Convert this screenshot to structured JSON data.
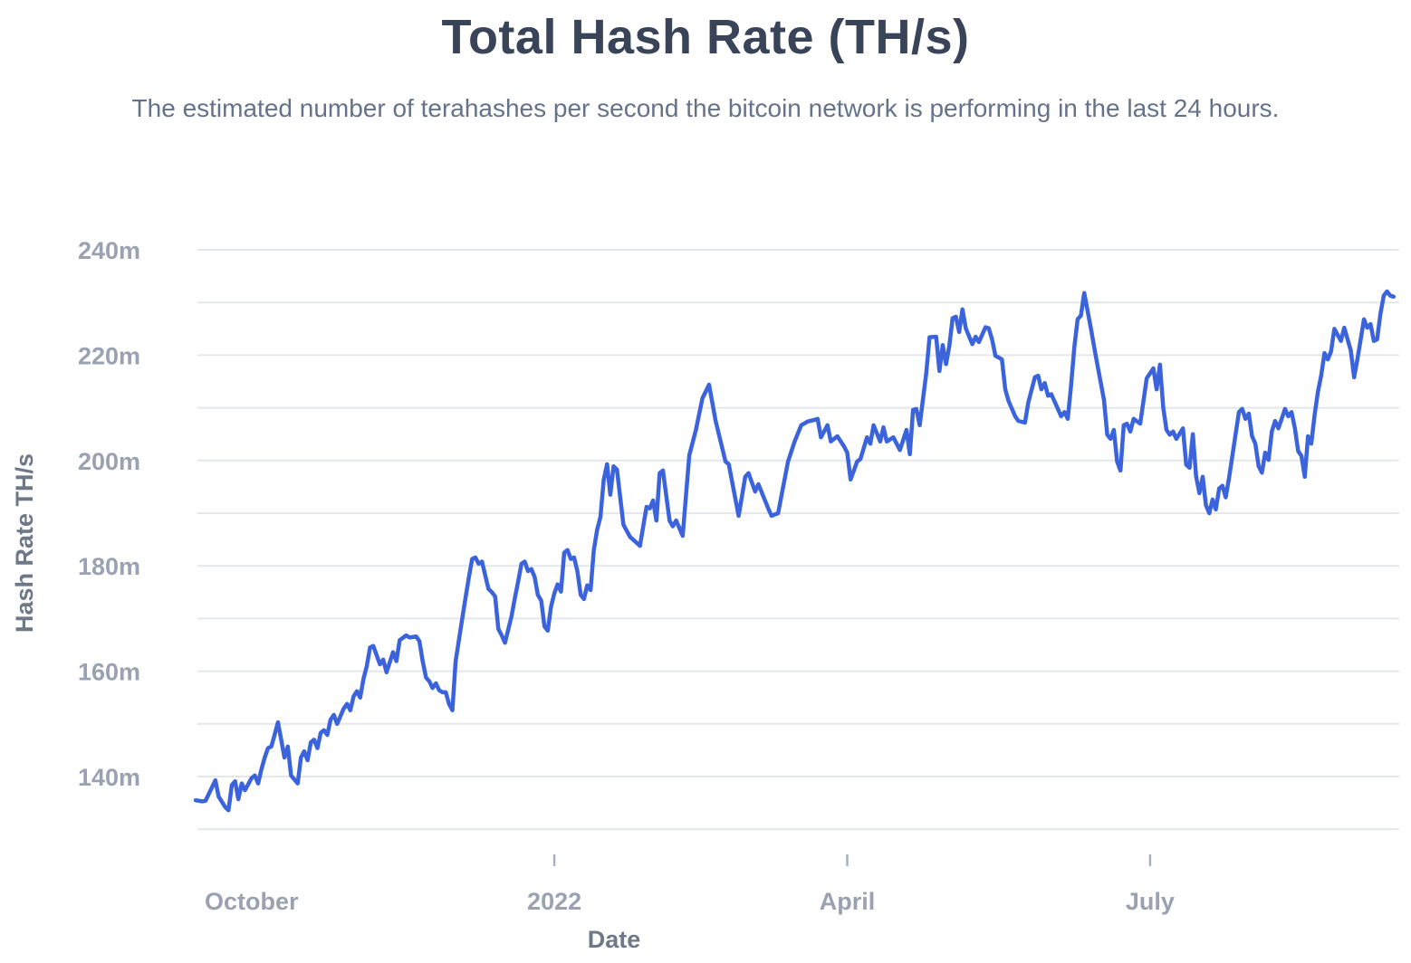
{
  "header": {
    "title": "Total Hash Rate (TH/s)",
    "subtitle": "The estimated number of terahashes per second the bitcoin network is performing in the last 24 hours."
  },
  "style": {
    "line_color": "#3a63dc",
    "grid_color": "#e4e7ec",
    "tick_mark_color": "#a9b0be",
    "tick_label_color": "#9aa2b2",
    "axis_title_color": "#6e7888",
    "title_color": "#3a4458",
    "subtitle_color": "#66728a",
    "background_color": "#ffffff"
  },
  "chart_data": {
    "type": "line",
    "title": "Total Hash Rate (TH/s)",
    "xlabel": "Date",
    "ylabel": "Hash Rate TH/s",
    "legend": "none",
    "grid": "horizontal-only",
    "x_start_date": "2021-09-14",
    "x_end_date": "2022-09-13",
    "x_unit": "days since start date",
    "ylim": [
      126,
      243
    ],
    "y_unit_suffix": "m",
    "y_gridlines": [
      240,
      230,
      220,
      210,
      200,
      190,
      180,
      170,
      160,
      150,
      140,
      130
    ],
    "y_tick_labels": [
      {
        "value": 240,
        "label": "240m"
      },
      {
        "value": 220,
        "label": "220m"
      },
      {
        "value": 200,
        "label": "200m"
      },
      {
        "value": 180,
        "label": "180m"
      },
      {
        "value": 160,
        "label": "160m"
      },
      {
        "value": 140,
        "label": "140m"
      }
    ],
    "x_ticks": [
      {
        "label": "October",
        "day": 17,
        "tick_visible": false
      },
      {
        "label": "2022",
        "day": 109,
        "tick_visible": true
      },
      {
        "label": "April",
        "day": 198,
        "tick_visible": true
      },
      {
        "label": "July",
        "day": 290,
        "tick_visible": true
      }
    ],
    "series_name": "Total Hash Rate (TH/s)",
    "points": [
      [
        0,
        135.5
      ],
      [
        2,
        135.3
      ],
      [
        3,
        135.4
      ],
      [
        5,
        138.0
      ],
      [
        6,
        139.3
      ],
      [
        7,
        136.2
      ],
      [
        9,
        134.2
      ],
      [
        10,
        133.6
      ],
      [
        11,
        138.4
      ],
      [
        12,
        139.1
      ],
      [
        13,
        135.7
      ],
      [
        14,
        138.7
      ],
      [
        15,
        137.4
      ],
      [
        17,
        139.7
      ],
      [
        18,
        140.2
      ],
      [
        19,
        138.7
      ],
      [
        20,
        141.4
      ],
      [
        21,
        143.6
      ],
      [
        22,
        145.4
      ],
      [
        23,
        145.7
      ],
      [
        24,
        147.9
      ],
      [
        25,
        150.3
      ],
      [
        26,
        147.0
      ],
      [
        27,
        143.6
      ],
      [
        28,
        145.7
      ],
      [
        29,
        140.2
      ],
      [
        31,
        138.7
      ],
      [
        32,
        143.6
      ],
      [
        33,
        144.8
      ],
      [
        34,
        143.1
      ],
      [
        35,
        146.5
      ],
      [
        36,
        147.0
      ],
      [
        37,
        145.4
      ],
      [
        38,
        148.3
      ],
      [
        39,
        148.8
      ],
      [
        40,
        147.9
      ],
      [
        41,
        150.8
      ],
      [
        42,
        151.7
      ],
      [
        43,
        150.0
      ],
      [
        45,
        152.9
      ],
      [
        46,
        153.8
      ],
      [
        47,
        152.6
      ],
      [
        48,
        155.2
      ],
      [
        49,
        156.2
      ],
      [
        50,
        155.0
      ],
      [
        51,
        158.5
      ],
      [
        52,
        161.0
      ],
      [
        53,
        164.5
      ],
      [
        54,
        164.8
      ],
      [
        56,
        161.3
      ],
      [
        57,
        162.2
      ],
      [
        58,
        159.8
      ],
      [
        60,
        163.6
      ],
      [
        61,
        161.9
      ],
      [
        62,
        165.9
      ],
      [
        64,
        166.8
      ],
      [
        65,
        166.4
      ],
      [
        67,
        166.6
      ],
      [
        68,
        165.7
      ],
      [
        69,
        161.9
      ],
      [
        70,
        158.8
      ],
      [
        71,
        158.1
      ],
      [
        72,
        156.8
      ],
      [
        73,
        157.7
      ],
      [
        74,
        156.4
      ],
      [
        75,
        156.0
      ],
      [
        76,
        156.0
      ],
      [
        77,
        153.8
      ],
      [
        78,
        152.6
      ],
      [
        79,
        161.9
      ],
      [
        80,
        165.9
      ],
      [
        81,
        170.0
      ],
      [
        82,
        173.9
      ],
      [
        83,
        177.7
      ],
      [
        84,
        181.3
      ],
      [
        85,
        181.6
      ],
      [
        86,
        180.4
      ],
      [
        87,
        180.8
      ],
      [
        88,
        178.2
      ],
      [
        89,
        175.6
      ],
      [
        90,
        175.0
      ],
      [
        91,
        174.2
      ],
      [
        92,
        168.0
      ],
      [
        93,
        166.8
      ],
      [
        94,
        165.4
      ],
      [
        96,
        170.5
      ],
      [
        97,
        173.9
      ],
      [
        98,
        177.0
      ],
      [
        99,
        180.4
      ],
      [
        100,
        180.8
      ],
      [
        101,
        179.0
      ],
      [
        102,
        179.4
      ],
      [
        103,
        177.9
      ],
      [
        104,
        174.5
      ],
      [
        105,
        173.4
      ],
      [
        106,
        168.5
      ],
      [
        107,
        167.7
      ],
      [
        108,
        172.3
      ],
      [
        109,
        174.8
      ],
      [
        110,
        176.5
      ],
      [
        111,
        175.1
      ],
      [
        112,
        182.5
      ],
      [
        113,
        183.0
      ],
      [
        114,
        181.3
      ],
      [
        115,
        181.6
      ],
      [
        116,
        179.0
      ],
      [
        117,
        174.5
      ],
      [
        118,
        173.7
      ],
      [
        119,
        176.3
      ],
      [
        120,
        175.4
      ],
      [
        121,
        183.0
      ],
      [
        122,
        186.8
      ],
      [
        123,
        189.3
      ],
      [
        124,
        196.3
      ],
      [
        125,
        199.3
      ],
      [
        126,
        193.5
      ],
      [
        127,
        198.9
      ],
      [
        128,
        198.3
      ],
      [
        130,
        187.8
      ],
      [
        132,
        185.5
      ],
      [
        135,
        183.8
      ],
      [
        137,
        191.2
      ],
      [
        138,
        190.9
      ],
      [
        139,
        192.4
      ],
      [
        140,
        188.6
      ],
      [
        141,
        197.6
      ],
      [
        142,
        198.1
      ],
      [
        144,
        188.6
      ],
      [
        145,
        187.5
      ],
      [
        146,
        188.6
      ],
      [
        148,
        185.7
      ],
      [
        150,
        201.0
      ],
      [
        152,
        205.8
      ],
      [
        154,
        211.8
      ],
      [
        156,
        214.4
      ],
      [
        158,
        207.5
      ],
      [
        161,
        199.8
      ],
      [
        162,
        199.3
      ],
      [
        165,
        189.5
      ],
      [
        167,
        196.9
      ],
      [
        168,
        197.6
      ],
      [
        170,
        194.1
      ],
      [
        171,
        195.5
      ],
      [
        174,
        190.9
      ],
      [
        175,
        189.5
      ],
      [
        177,
        190.0
      ],
      [
        180,
        199.8
      ],
      [
        182,
        203.6
      ],
      [
        184,
        206.7
      ],
      [
        186,
        207.4
      ],
      [
        188,
        207.7
      ],
      [
        189,
        207.9
      ],
      [
        190,
        204.4
      ],
      [
        192,
        206.7
      ],
      [
        193,
        203.6
      ],
      [
        195,
        204.6
      ],
      [
        197,
        202.7
      ],
      [
        198,
        201.5
      ],
      [
        199,
        196.4
      ],
      [
        201,
        199.8
      ],
      [
        202,
        200.3
      ],
      [
        204,
        204.4
      ],
      [
        205,
        203.2
      ],
      [
        206,
        206.7
      ],
      [
        208,
        203.6
      ],
      [
        209,
        206.3
      ],
      [
        210,
        203.6
      ],
      [
        212,
        204.4
      ],
      [
        214,
        202.0
      ],
      [
        216,
        205.8
      ],
      [
        217,
        201.2
      ],
      [
        218,
        209.6
      ],
      [
        219,
        209.8
      ],
      [
        220,
        206.7
      ],
      [
        222,
        216.5
      ],
      [
        223,
        223.4
      ],
      [
        225,
        223.5
      ],
      [
        226,
        217.0
      ],
      [
        227,
        221.9
      ],
      [
        228,
        218.3
      ],
      [
        229,
        221.7
      ],
      [
        230,
        227.0
      ],
      [
        231,
        227.3
      ],
      [
        232,
        224.4
      ],
      [
        233,
        228.7
      ],
      [
        234,
        225.1
      ],
      [
        236,
        222.1
      ],
      [
        237,
        223.5
      ],
      [
        238,
        222.5
      ],
      [
        240,
        225.3
      ],
      [
        241,
        225.1
      ],
      [
        242,
        223.0
      ],
      [
        243,
        219.9
      ],
      [
        245,
        219.2
      ],
      [
        246,
        213.5
      ],
      [
        247,
        211.3
      ],
      [
        249,
        208.4
      ],
      [
        250,
        207.5
      ],
      [
        252,
        207.2
      ],
      [
        253,
        211.0
      ],
      [
        255,
        215.8
      ],
      [
        256,
        216.1
      ],
      [
        257,
        213.5
      ],
      [
        258,
        214.7
      ],
      [
        259,
        212.3
      ],
      [
        260,
        212.6
      ],
      [
        262,
        209.8
      ],
      [
        263,
        208.4
      ],
      [
        264,
        209.2
      ],
      [
        265,
        207.9
      ],
      [
        266,
        214.1
      ],
      [
        267,
        221.6
      ],
      [
        268,
        226.8
      ],
      [
        269,
        227.5
      ],
      [
        270,
        231.8
      ],
      [
        272,
        225.2
      ],
      [
        273,
        221.6
      ],
      [
        274,
        218.2
      ],
      [
        275,
        214.9
      ],
      [
        276,
        211.5
      ],
      [
        277,
        204.9
      ],
      [
        278,
        204.1
      ],
      [
        279,
        205.8
      ],
      [
        280,
        199.8
      ],
      [
        281,
        198.1
      ],
      [
        282,
        206.7
      ],
      [
        283,
        207.0
      ],
      [
        284,
        205.5
      ],
      [
        285,
        207.9
      ],
      [
        287,
        207.0
      ],
      [
        289,
        215.6
      ],
      [
        291,
        217.5
      ],
      [
        292,
        213.5
      ],
      [
        293,
        218.2
      ],
      [
        294,
        210.1
      ],
      [
        295,
        205.8
      ],
      [
        296,
        204.9
      ],
      [
        297,
        205.5
      ],
      [
        298,
        204.1
      ],
      [
        300,
        206.1
      ],
      [
        301,
        199.2
      ],
      [
        302,
        198.6
      ],
      [
        303,
        205.0
      ],
      [
        304,
        197.0
      ],
      [
        305,
        193.8
      ],
      [
        306,
        196.9
      ],
      [
        307,
        191.5
      ],
      [
        308,
        190.0
      ],
      [
        309,
        192.6
      ],
      [
        310,
        190.7
      ],
      [
        311,
        194.7
      ],
      [
        312,
        195.2
      ],
      [
        313,
        193.0
      ],
      [
        314,
        196.7
      ],
      [
        317,
        209.2
      ],
      [
        318,
        209.8
      ],
      [
        319,
        207.9
      ],
      [
        320,
        208.9
      ],
      [
        321,
        204.6
      ],
      [
        322,
        203.2
      ],
      [
        323,
        198.9
      ],
      [
        324,
        197.7
      ],
      [
        325,
        201.5
      ],
      [
        326,
        200.1
      ],
      [
        327,
        205.5
      ],
      [
        328,
        207.5
      ],
      [
        329,
        206.1
      ],
      [
        331,
        209.8
      ],
      [
        332,
        208.4
      ],
      [
        333,
        209.2
      ],
      [
        334,
        206.1
      ],
      [
        335,
        201.8
      ],
      [
        336,
        200.9
      ],
      [
        337,
        196.9
      ],
      [
        338,
        204.6
      ],
      [
        339,
        203.2
      ],
      [
        340,
        208.7
      ],
      [
        341,
        213.0
      ],
      [
        342,
        216.1
      ],
      [
        343,
        220.4
      ],
      [
        344,
        219.2
      ],
      [
        345,
        220.7
      ],
      [
        346,
        225.0
      ],
      [
        348,
        222.7
      ],
      [
        349,
        225.2
      ],
      [
        351,
        220.9
      ],
      [
        352,
        215.8
      ],
      [
        353,
        219.2
      ],
      [
        355,
        226.8
      ],
      [
        356,
        225.2
      ],
      [
        357,
        225.9
      ],
      [
        358,
        222.7
      ],
      [
        359,
        223.0
      ],
      [
        360,
        227.8
      ],
      [
        361,
        231.3
      ],
      [
        362,
        232.1
      ],
      [
        363,
        231.3
      ],
      [
        364,
        231.1
      ]
    ]
  }
}
